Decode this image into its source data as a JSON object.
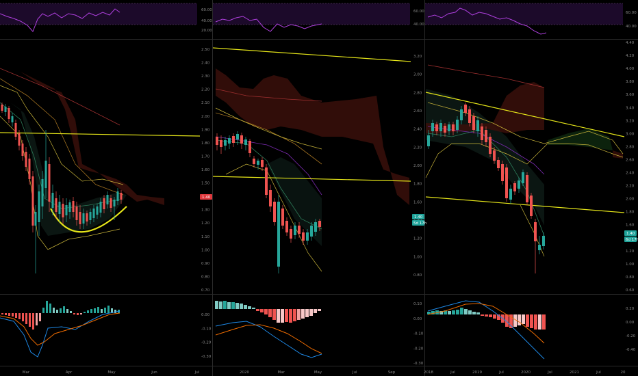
{
  "colors": {
    "background": "#000000",
    "rsi_band": "#1c0a2a",
    "rsi_line": "#b040e0",
    "bull": "#26a69a",
    "bear": "#ef5350",
    "trendline": "#e6e619",
    "cloud": "#3a0f0a",
    "price_badge_red": "#e0393e",
    "price_badge_teal": "#1fa39a",
    "macd_line": "#1e88e5",
    "signal_line": "#ef6c00"
  },
  "panels": [
    {
      "id": "daily",
      "rsi_axis": [
        "60.00",
        "40.00",
        "20.00"
      ],
      "price_axis": [
        "2.50",
        "2.40",
        "2.30",
        "2.20",
        "2.10",
        "2.00",
        "1.90",
        "1.80",
        "1.70",
        "1.60",
        "1.50",
        "1.40",
        "1.30",
        "1.20",
        "1.10",
        "1.00",
        "0.90",
        "0.80",
        "0.70"
      ],
      "price_badge": "1.40",
      "macd_axis": [
        "0.00",
        "-0.10",
        "-0.20",
        "-0.30"
      ],
      "time_axis": [
        "Mar",
        "Apr",
        "May",
        "Jun",
        "Jul"
      ]
    },
    {
      "id": "weekly",
      "rsi_axis": [
        "60.00",
        "40.00"
      ],
      "price_axis": [
        "3.20",
        "3.00",
        "2.80",
        "2.60",
        "2.40",
        "2.20",
        "2.00",
        "1.80",
        "1.60",
        "1.40",
        "1.20",
        "1.00",
        "0.80"
      ],
      "price_badge": "1.40",
      "price_badge_sub": "5d 17h",
      "macd_axis": [
        "0.10",
        "0.00",
        "-0.10",
        "-0.20",
        "-0.30"
      ],
      "time_axis": [
        "2020",
        "Mar",
        "May",
        "Jul",
        "Sep"
      ]
    },
    {
      "id": "monthly",
      "rsi_axis": [
        "60.00",
        "40.00"
      ],
      "price_axis": [
        "4.40",
        "4.20",
        "4.00",
        "3.80",
        "3.60",
        "3.40",
        "3.20",
        "3.00",
        "2.80",
        "2.60",
        "2.40",
        "2.20",
        "2.00",
        "1.80",
        "1.60",
        "1.40",
        "1.20",
        "1.00",
        "0.80",
        "0.60"
      ],
      "price_badge": "1.40",
      "price_badge_sub": "6d 17h",
      "macd_axis": [
        "0.20",
        "0.00",
        "-0.20",
        "-0.40"
      ],
      "time_axis": [
        "2018",
        "Jul",
        "2019",
        "Jul",
        "2020",
        "Jul",
        "2021",
        "Jul",
        "20"
      ]
    }
  ]
}
